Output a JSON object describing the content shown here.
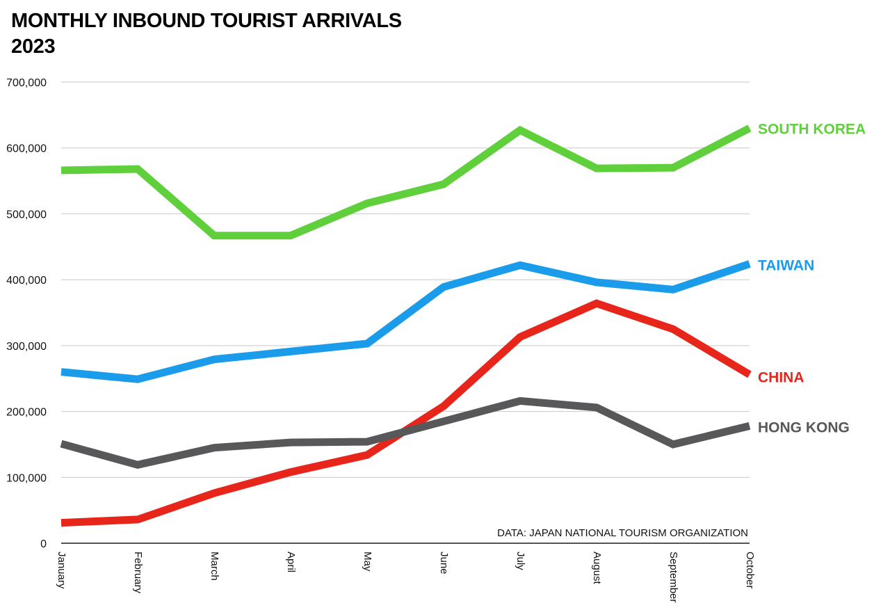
{
  "chart_data": {
    "type": "line",
    "title": "MONTHLY INBOUND TOURIST ARRIVALS",
    "subtitle": "2023",
    "source": "DATA: JAPAN NATIONAL TOURISM ORGANIZATION",
    "xlabel": "",
    "ylabel": "",
    "ylim": [
      0,
      700000
    ],
    "grid": true,
    "legend": "labels at right end of each line",
    "y_ticks": [
      {
        "value": 0,
        "label": "0"
      },
      {
        "value": 100000,
        "label": "100,000"
      },
      {
        "value": 200000,
        "label": "200,000"
      },
      {
        "value": 300000,
        "label": "300,000"
      },
      {
        "value": 400000,
        "label": "400,000"
      },
      {
        "value": 500000,
        "label": "500,000"
      },
      {
        "value": 600000,
        "label": "600,000"
      },
      {
        "value": 700000,
        "label": "700,000"
      }
    ],
    "categories": [
      "January",
      "February",
      "March",
      "April",
      "May",
      "June",
      "July",
      "August",
      "September",
      "October"
    ],
    "series": [
      {
        "name": "SOUTH KOREA",
        "color": "#5fd03b",
        "values": [
          566000,
          568000,
          467000,
          467000,
          516000,
          545000,
          627000,
          569000,
          570000,
          630000
        ]
      },
      {
        "name": "TAIWAN",
        "color": "#1b9cea",
        "values": [
          260000,
          249000,
          279000,
          291000,
          303000,
          389000,
          422000,
          396000,
          385000,
          424000
        ]
      },
      {
        "name": "CHINA",
        "color": "#e8251b",
        "values": [
          31000,
          36000,
          76000,
          108000,
          134000,
          208000,
          313000,
          364000,
          325000,
          256000
        ]
      },
      {
        "name": "HONG KONG",
        "color": "#58585a",
        "values": [
          151000,
          119000,
          145000,
          153000,
          154000,
          185000,
          216000,
          206000,
          150000,
          178000
        ]
      }
    ]
  }
}
